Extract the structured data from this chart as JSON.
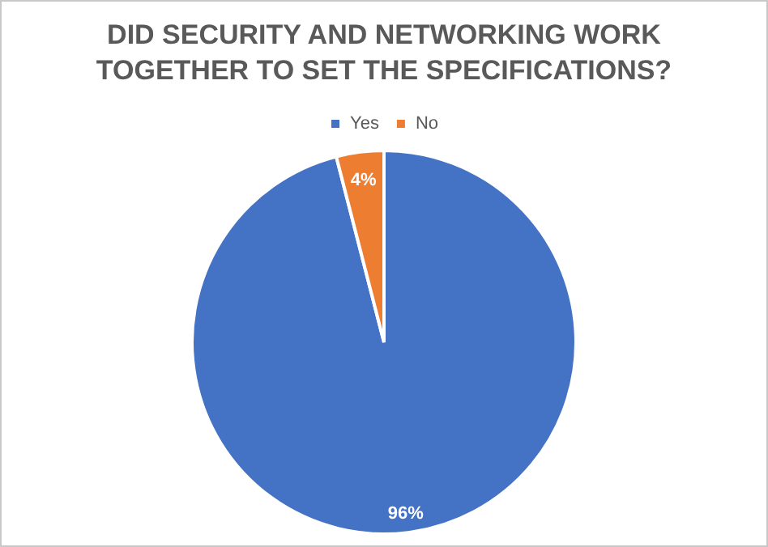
{
  "chart_data": {
    "type": "pie",
    "title": "DID SECURITY AND NETWORKING WORK TOGETHER TO SET THE SPECIFICATIONS?",
    "categories": [
      "Yes",
      "No"
    ],
    "values": [
      96,
      4
    ],
    "colors": [
      "#4472c4",
      "#ed7d31"
    ],
    "value_labels": [
      "96%",
      "4%"
    ],
    "legend": "top"
  }
}
